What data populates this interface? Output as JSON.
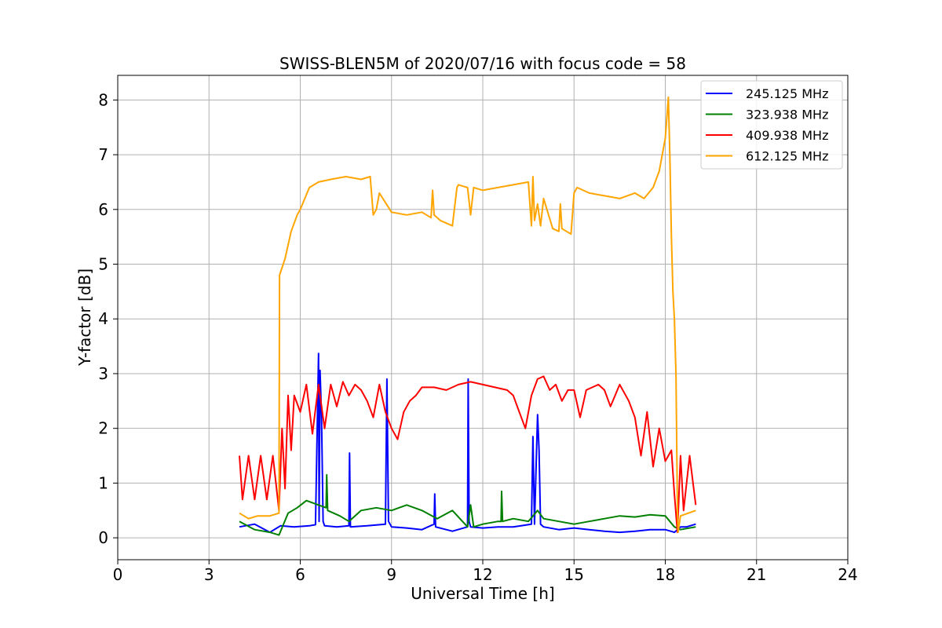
{
  "chart_data": {
    "type": "line",
    "title": "SWISS-BLEN5M of 2020/07/16 with focus code = 58",
    "xlabel": "Universal Time [h]",
    "ylabel": "Y-factor [dB]",
    "xlim": [
      0,
      24
    ],
    "ylim": [
      -0.4,
      8.45
    ],
    "xticks": [
      0,
      3,
      6,
      9,
      12,
      15,
      18,
      21,
      24
    ],
    "yticks": [
      0,
      1,
      2,
      3,
      4,
      5,
      6,
      7,
      8
    ],
    "grid": true,
    "legend_position": "top-right",
    "series": [
      {
        "name": "245.125 MHz",
        "color": "#0000ff",
        "x": [
          4.0,
          4.5,
          5.0,
          5.35,
          5.8,
          6.3,
          6.5,
          6.6,
          6.62,
          6.65,
          6.7,
          6.75,
          6.8,
          7.2,
          7.6,
          7.62,
          7.65,
          8.2,
          8.8,
          8.85,
          8.9,
          9.0,
          9.5,
          10.0,
          10.4,
          10.42,
          10.45,
          11.0,
          11.5,
          11.52,
          11.55,
          11.6,
          12.0,
          12.5,
          13.0,
          13.6,
          13.65,
          13.7,
          13.8,
          13.85,
          13.9,
          14.0,
          14.5,
          15.0,
          15.5,
          16.0,
          16.5,
          17.0,
          17.5,
          18.0,
          18.3,
          18.5,
          18.7,
          19.0
        ],
        "y": [
          0.2,
          0.25,
          0.1,
          0.22,
          0.2,
          0.22,
          0.24,
          3.37,
          0.3,
          3.06,
          2.2,
          0.3,
          0.22,
          0.2,
          0.22,
          1.55,
          0.2,
          0.22,
          0.25,
          2.9,
          0.3,
          0.2,
          0.18,
          0.15,
          0.25,
          0.8,
          0.2,
          0.12,
          0.2,
          2.9,
          0.3,
          0.2,
          0.18,
          0.2,
          0.2,
          0.25,
          1.85,
          0.25,
          2.25,
          1.6,
          0.25,
          0.2,
          0.15,
          0.18,
          0.15,
          0.12,
          0.1,
          0.12,
          0.15,
          0.15,
          0.1,
          0.2,
          0.2,
          0.25
        ]
      },
      {
        "name": "323.938 MHz",
        "color": "#008000",
        "x": [
          4.0,
          4.5,
          5.0,
          5.3,
          5.6,
          5.9,
          6.2,
          6.6,
          6.85,
          6.87,
          6.9,
          7.3,
          7.6,
          8.0,
          8.5,
          9.0,
          9.5,
          10.0,
          10.5,
          11.0,
          11.5,
          11.6,
          11.7,
          12.0,
          12.5,
          12.6,
          12.62,
          12.65,
          13.0,
          13.5,
          13.8,
          14.0,
          14.5,
          15.0,
          15.5,
          16.0,
          16.5,
          17.0,
          17.5,
          18.0,
          18.3,
          18.5,
          19.0
        ],
        "y": [
          0.3,
          0.15,
          0.1,
          0.05,
          0.45,
          0.55,
          0.68,
          0.6,
          0.55,
          1.15,
          0.5,
          0.4,
          0.3,
          0.5,
          0.55,
          0.5,
          0.6,
          0.5,
          0.35,
          0.5,
          0.2,
          0.6,
          0.2,
          0.25,
          0.3,
          0.3,
          0.85,
          0.3,
          0.35,
          0.3,
          0.5,
          0.35,
          0.3,
          0.25,
          0.3,
          0.35,
          0.4,
          0.38,
          0.42,
          0.4,
          0.2,
          0.15,
          0.2
        ]
      },
      {
        "name": "409.938 MHz",
        "color": "#ff0000",
        "x": [
          4.0,
          4.1,
          4.3,
          4.5,
          4.7,
          4.9,
          5.1,
          5.3,
          5.4,
          5.5,
          5.6,
          5.7,
          5.8,
          6.0,
          6.2,
          6.4,
          6.6,
          6.8,
          7.0,
          7.2,
          7.4,
          7.6,
          7.8,
          8.0,
          8.2,
          8.4,
          8.6,
          8.8,
          9.0,
          9.2,
          9.4,
          9.6,
          9.8,
          10.0,
          10.4,
          10.8,
          11.2,
          11.6,
          12.0,
          12.4,
          12.8,
          13.0,
          13.2,
          13.4,
          13.6,
          13.8,
          14.0,
          14.2,
          14.4,
          14.6,
          14.8,
          15.0,
          15.2,
          15.4,
          15.6,
          15.8,
          16.0,
          16.2,
          16.5,
          16.8,
          17.0,
          17.2,
          17.4,
          17.6,
          17.8,
          18.0,
          18.2,
          18.3,
          18.4,
          18.5,
          18.6,
          18.8,
          19.0
        ],
        "y": [
          1.5,
          0.7,
          1.5,
          0.7,
          1.5,
          0.7,
          1.5,
          0.5,
          2.0,
          0.9,
          2.6,
          1.6,
          2.6,
          2.3,
          2.8,
          1.9,
          2.8,
          2.0,
          2.8,
          2.4,
          2.85,
          2.6,
          2.8,
          2.7,
          2.5,
          2.2,
          2.8,
          2.3,
          2.0,
          1.8,
          2.3,
          2.5,
          2.6,
          2.75,
          2.75,
          2.7,
          2.8,
          2.85,
          2.8,
          2.75,
          2.7,
          2.6,
          2.3,
          2.0,
          2.6,
          2.9,
          2.95,
          2.7,
          2.8,
          2.5,
          2.7,
          2.7,
          2.2,
          2.7,
          2.75,
          2.8,
          2.7,
          2.4,
          2.8,
          2.5,
          2.2,
          1.5,
          2.3,
          1.3,
          2.0,
          1.4,
          1.6,
          0.8,
          0.1,
          1.5,
          0.5,
          1.5,
          0.6
        ]
      },
      {
        "name": "612.125 MHz",
        "color": "#ffa500",
        "x": [
          4.0,
          4.3,
          4.6,
          5.0,
          5.3,
          5.32,
          5.5,
          5.7,
          5.9,
          6.0,
          6.3,
          6.6,
          7.0,
          7.5,
          8.0,
          8.3,
          8.4,
          8.5,
          8.6,
          9.0,
          9.5,
          10.0,
          10.3,
          10.35,
          10.4,
          10.6,
          11.0,
          11.15,
          11.2,
          11.5,
          11.6,
          11.7,
          12.0,
          12.5,
          13.0,
          13.5,
          13.6,
          13.65,
          13.7,
          13.8,
          13.9,
          14.0,
          14.3,
          14.5,
          14.55,
          14.6,
          14.9,
          15.0,
          15.1,
          15.5,
          16.0,
          16.5,
          17.0,
          17.3,
          17.6,
          17.8,
          18.0,
          18.1,
          18.15,
          18.2,
          18.25,
          18.3,
          18.35,
          18.4,
          18.42,
          18.5,
          19.0
        ],
        "y": [
          0.45,
          0.35,
          0.4,
          0.4,
          0.45,
          4.8,
          5.1,
          5.6,
          5.9,
          6.0,
          6.4,
          6.5,
          6.55,
          6.6,
          6.55,
          6.6,
          5.9,
          6.0,
          6.3,
          5.95,
          5.9,
          5.95,
          5.85,
          6.35,
          5.9,
          5.8,
          5.7,
          6.4,
          6.45,
          6.4,
          5.9,
          6.4,
          6.35,
          6.4,
          6.45,
          6.5,
          5.7,
          6.6,
          5.8,
          6.1,
          5.7,
          6.2,
          5.65,
          5.6,
          6.1,
          5.65,
          5.55,
          6.3,
          6.4,
          6.3,
          6.25,
          6.2,
          6.3,
          6.2,
          6.4,
          6.7,
          7.3,
          8.05,
          7.0,
          5.5,
          4.5,
          4.0,
          3.0,
          0.5,
          0.1,
          0.4,
          0.5
        ]
      }
    ]
  }
}
